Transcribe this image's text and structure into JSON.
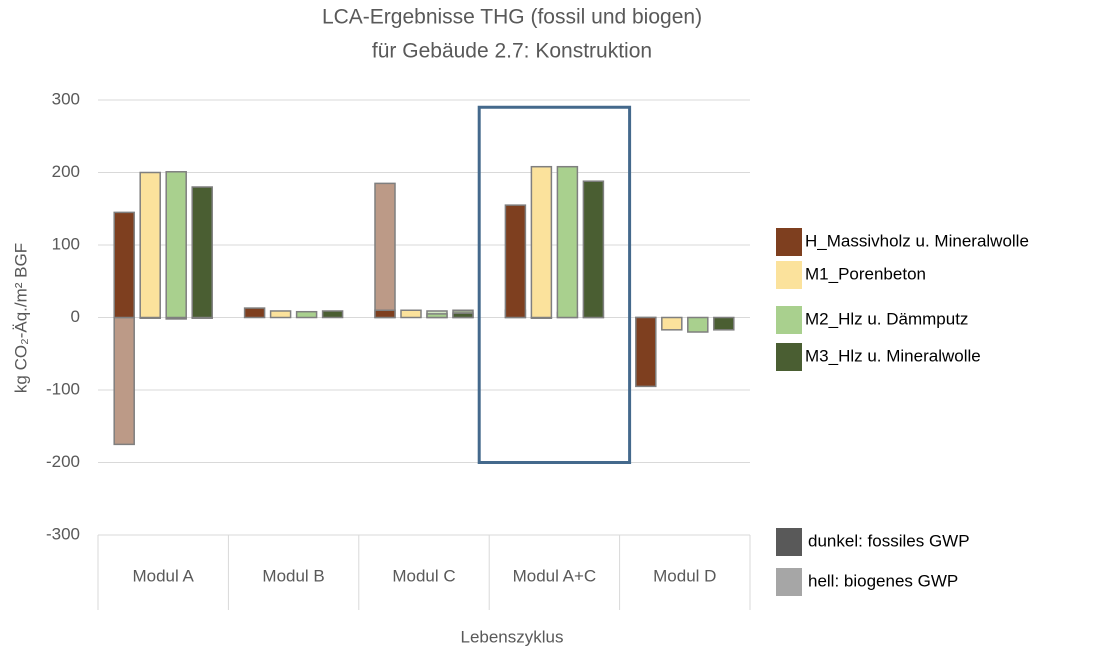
{
  "chart_data": {
    "type": "bar",
    "title": [
      "LCA-Ergebnisse THG (fossil und biogen)",
      "für Gebäude 2.7: Konstruktion"
    ],
    "y_label": "kg CO₂-Äq./m² BGF",
    "x_label": "Lebenszyklus",
    "categories": [
      "Modul A",
      "Modul B",
      "Modul C",
      "Modul A+C",
      "Modul D"
    ],
    "series": [
      {
        "name": "H_Massivholz u. Mineralwolle",
        "color": "#7e3f1f",
        "biogenic_color": "#bc9a87",
        "values": [
          145,
          13,
          10,
          155,
          -95
        ],
        "biogenic_values": [
          -175,
          0,
          185,
          10,
          -1
        ]
      },
      {
        "name": "M1_Porenbeton",
        "color": "#fbe29c",
        "biogenic_color": "#fdf0cc",
        "values": [
          200,
          9,
          10,
          208,
          -17
        ],
        "biogenic_values": [
          -1,
          0,
          0,
          -1,
          0
        ]
      },
      {
        "name": "M2_Hlz u. Dämmputz",
        "color": "#a9d08e",
        "biogenic_color": "#d3e6c5",
        "values": [
          201,
          8,
          5,
          208,
          -20
        ],
        "biogenic_values": [
          -2,
          0,
          9,
          7,
          0
        ]
      },
      {
        "name": "M3_Hlz u. Mineralwolle",
        "color": "#4a5e32",
        "biogenic_color": "#9aa68c",
        "values": [
          180,
          9,
          6,
          188,
          -17
        ],
        "biogenic_values": [
          -1,
          0,
          10,
          9,
          0
        ]
      }
    ],
    "shade_legend": [
      {
        "label": "dunkel: fossiles GWP",
        "color": "#595959"
      },
      {
        "label": "hell: biogenes GWP",
        "color": "#a6a6a6"
      }
    ],
    "highlight": {
      "category": "Modul A+C",
      "range": [
        -200,
        290
      ],
      "color": "#44698c"
    },
    "ylim": [
      -300,
      300
    ],
    "yticks": [
      -300,
      -200,
      -100,
      0,
      100,
      200,
      300
    ],
    "grid": true
  }
}
